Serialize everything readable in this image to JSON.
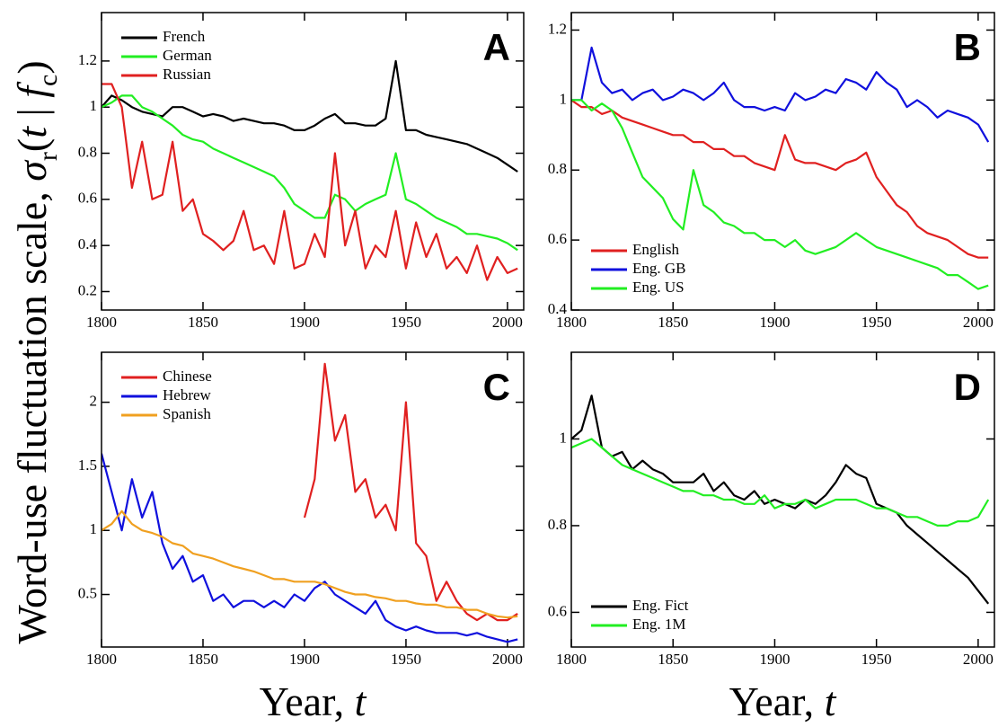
{
  "y_label": [
    "Word-use fluctuation scale, ",
    "σ",
    "r",
    "(",
    "t",
    " | ",
    "f",
    "c",
    ")"
  ],
  "x_label": [
    "Year, ",
    "t"
  ],
  "chart_data": [
    {
      "type": "line",
      "label": "A",
      "legend": "upper left",
      "x": [
        1800,
        1805,
        1810,
        1815,
        1820,
        1825,
        1830,
        1835,
        1840,
        1845,
        1850,
        1855,
        1860,
        1865,
        1870,
        1875,
        1880,
        1885,
        1890,
        1895,
        1900,
        1905,
        1910,
        1915,
        1920,
        1925,
        1930,
        1935,
        1940,
        1945,
        1950,
        1955,
        1960,
        1965,
        1970,
        1975,
        1980,
        1985,
        1990,
        1995,
        2000,
        2005
      ],
      "xlim": [
        1800,
        2008
      ],
      "xticks": [
        1800,
        1850,
        1900,
        1950,
        2000
      ],
      "ylim": [
        0.12,
        1.41
      ],
      "yticks": [
        0.2,
        0.4,
        0.6,
        0.8,
        1,
        1.2
      ],
      "series": [
        {
          "name": "French",
          "color": "#000000",
          "values": [
            1.0,
            1.05,
            1.03,
            1.0,
            0.98,
            0.97,
            0.96,
            1.0,
            1.0,
            0.98,
            0.96,
            0.97,
            0.96,
            0.94,
            0.95,
            0.94,
            0.93,
            0.93,
            0.92,
            0.9,
            0.9,
            0.92,
            0.95,
            0.97,
            0.93,
            0.93,
            0.92,
            0.92,
            0.95,
            1.2,
            0.9,
            0.9,
            0.88,
            0.87,
            0.86,
            0.85,
            0.84,
            0.82,
            0.8,
            0.78,
            0.75,
            0.72
          ]
        },
        {
          "name": "German",
          "color": "#22ee22",
          "values": [
            1.0,
            1.02,
            1.05,
            1.05,
            1.0,
            0.98,
            0.95,
            0.92,
            0.88,
            0.86,
            0.85,
            0.82,
            0.8,
            0.78,
            0.76,
            0.74,
            0.72,
            0.7,
            0.65,
            0.58,
            0.55,
            0.52,
            0.52,
            0.62,
            0.6,
            0.55,
            0.58,
            0.6,
            0.62,
            0.8,
            0.6,
            0.58,
            0.55,
            0.52,
            0.5,
            0.48,
            0.45,
            0.45,
            0.44,
            0.43,
            0.41,
            0.38
          ]
        },
        {
          "name": "Russian",
          "color": "#e02020",
          "values": [
            1.1,
            1.1,
            1.0,
            0.65,
            0.85,
            0.6,
            0.62,
            0.85,
            0.55,
            0.6,
            0.45,
            0.42,
            0.38,
            0.42,
            0.55,
            0.38,
            0.4,
            0.32,
            0.55,
            0.3,
            0.32,
            0.45,
            0.35,
            0.8,
            0.4,
            0.55,
            0.3,
            0.4,
            0.35,
            0.55,
            0.3,
            0.5,
            0.35,
            0.45,
            0.3,
            0.35,
            0.28,
            0.4,
            0.25,
            0.35,
            0.28,
            0.3
          ]
        }
      ]
    },
    {
      "type": "line",
      "label": "B",
      "legend": "lower left",
      "x": [
        1800,
        1805,
        1810,
        1815,
        1820,
        1825,
        1830,
        1835,
        1840,
        1845,
        1850,
        1855,
        1860,
        1865,
        1870,
        1875,
        1880,
        1885,
        1890,
        1895,
        1900,
        1905,
        1910,
        1915,
        1920,
        1925,
        1930,
        1935,
        1940,
        1945,
        1950,
        1955,
        1960,
        1965,
        1970,
        1975,
        1980,
        1985,
        1990,
        1995,
        2000,
        2005
      ],
      "xlim": [
        1800,
        2008
      ],
      "xticks": [
        1800,
        1850,
        1900,
        1950,
        2000
      ],
      "ylim": [
        0.4,
        1.25
      ],
      "yticks": [
        0.4,
        0.6,
        0.8,
        1,
        1.2
      ],
      "series": [
        {
          "name": "English",
          "color": "#e02020",
          "values": [
            1.0,
            0.98,
            0.98,
            0.96,
            0.97,
            0.95,
            0.94,
            0.93,
            0.92,
            0.91,
            0.9,
            0.9,
            0.88,
            0.88,
            0.86,
            0.86,
            0.84,
            0.84,
            0.82,
            0.81,
            0.8,
            0.9,
            0.83,
            0.82,
            0.82,
            0.81,
            0.8,
            0.82,
            0.83,
            0.85,
            0.78,
            0.74,
            0.7,
            0.68,
            0.64,
            0.62,
            0.61,
            0.6,
            0.58,
            0.56,
            0.55,
            0.55
          ]
        },
        {
          "name": "Eng. GB",
          "color": "#1010dd",
          "values": [
            1.0,
            1.0,
            1.15,
            1.05,
            1.02,
            1.03,
            1.0,
            1.02,
            1.03,
            1.0,
            1.01,
            1.03,
            1.02,
            1.0,
            1.02,
            1.05,
            1.0,
            0.98,
            0.98,
            0.97,
            0.98,
            0.97,
            1.02,
            1.0,
            1.01,
            1.03,
            1.02,
            1.06,
            1.05,
            1.03,
            1.08,
            1.05,
            1.03,
            0.98,
            1.0,
            0.98,
            0.95,
            0.97,
            0.96,
            0.95,
            0.93,
            0.88
          ]
        },
        {
          "name": "Eng. US",
          "color": "#22ee22",
          "values": [
            1.0,
            1.0,
            0.97,
            0.99,
            0.97,
            0.92,
            0.85,
            0.78,
            0.75,
            0.72,
            0.66,
            0.63,
            0.8,
            0.7,
            0.68,
            0.65,
            0.64,
            0.62,
            0.62,
            0.6,
            0.6,
            0.58,
            0.6,
            0.57,
            0.56,
            0.57,
            0.58,
            0.6,
            0.62,
            0.6,
            0.58,
            0.57,
            0.56,
            0.55,
            0.54,
            0.53,
            0.52,
            0.5,
            0.5,
            0.48,
            0.46,
            0.47
          ]
        }
      ]
    },
    {
      "type": "line",
      "label": "C",
      "legend": "upper left",
      "x": [
        1800,
        1805,
        1810,
        1815,
        1820,
        1825,
        1830,
        1835,
        1840,
        1845,
        1850,
        1855,
        1860,
        1865,
        1870,
        1875,
        1880,
        1885,
        1890,
        1895,
        1900,
        1905,
        1910,
        1915,
        1920,
        1925,
        1930,
        1935,
        1940,
        1945,
        1950,
        1955,
        1960,
        1965,
        1970,
        1975,
        1980,
        1985,
        1990,
        1995,
        2000,
        2005
      ],
      "xlim": [
        1800,
        2008
      ],
      "xticks": [
        1800,
        1850,
        1900,
        1950,
        2000
      ],
      "ylim": [
        0.09,
        2.39
      ],
      "yticks": [
        0.5,
        1,
        1.5,
        2
      ],
      "series": [
        {
          "name": "Chinese",
          "color": "#e02020",
          "values": [
            null,
            null,
            null,
            null,
            null,
            null,
            null,
            null,
            null,
            null,
            null,
            null,
            null,
            null,
            null,
            null,
            null,
            null,
            null,
            null,
            1.1,
            1.4,
            2.3,
            1.7,
            1.9,
            1.3,
            1.4,
            1.1,
            1.2,
            1.0,
            2.0,
            0.9,
            0.8,
            0.45,
            0.6,
            0.45,
            0.35,
            0.3,
            0.35,
            0.3,
            0.3,
            0.35
          ]
        },
        {
          "name": "Hebrew",
          "color": "#1010dd",
          "values": [
            1.6,
            1.3,
            1.0,
            1.4,
            1.1,
            1.3,
            0.9,
            0.7,
            0.8,
            0.6,
            0.65,
            0.45,
            0.5,
            0.4,
            0.45,
            0.45,
            0.4,
            0.45,
            0.4,
            0.5,
            0.45,
            0.55,
            0.6,
            0.5,
            0.45,
            0.4,
            0.35,
            0.45,
            0.3,
            0.25,
            0.22,
            0.25,
            0.22,
            0.2,
            0.2,
            0.2,
            0.18,
            0.2,
            0.17,
            0.15,
            0.13,
            0.15
          ]
        },
        {
          "name": "Spanish",
          "color": "#f0a020",
          "values": [
            1.0,
            1.05,
            1.15,
            1.05,
            1.0,
            0.98,
            0.95,
            0.9,
            0.88,
            0.82,
            0.8,
            0.78,
            0.75,
            0.72,
            0.7,
            0.68,
            0.65,
            0.62,
            0.62,
            0.6,
            0.6,
            0.6,
            0.58,
            0.55,
            0.52,
            0.5,
            0.5,
            0.48,
            0.47,
            0.45,
            0.45,
            0.43,
            0.42,
            0.42,
            0.4,
            0.4,
            0.38,
            0.38,
            0.35,
            0.33,
            0.32,
            0.33
          ]
        }
      ]
    },
    {
      "type": "line",
      "label": "D",
      "legend": "lower left",
      "x": [
        1800,
        1805,
        1810,
        1815,
        1820,
        1825,
        1830,
        1835,
        1840,
        1845,
        1850,
        1855,
        1860,
        1865,
        1870,
        1875,
        1880,
        1885,
        1890,
        1895,
        1900,
        1905,
        1910,
        1915,
        1920,
        1925,
        1930,
        1935,
        1940,
        1945,
        1950,
        1955,
        1960,
        1965,
        1970,
        1975,
        1980,
        1985,
        1990,
        1995,
        2000,
        2005
      ],
      "xlim": [
        1800,
        2008
      ],
      "xticks": [
        1800,
        1850,
        1900,
        1950,
        2000
      ],
      "ylim": [
        0.52,
        1.2
      ],
      "yticks": [
        0.6,
        0.8,
        1
      ],
      "series": [
        {
          "name": "Eng. Fict",
          "color": "#000000",
          "values": [
            1.0,
            1.02,
            1.1,
            0.98,
            0.96,
            0.97,
            0.93,
            0.95,
            0.93,
            0.92,
            0.9,
            0.9,
            0.9,
            0.92,
            0.88,
            0.9,
            0.87,
            0.86,
            0.88,
            0.85,
            0.86,
            0.85,
            0.84,
            0.86,
            0.85,
            0.87,
            0.9,
            0.94,
            0.92,
            0.91,
            0.85,
            0.84,
            0.83,
            0.8,
            0.78,
            0.76,
            0.74,
            0.72,
            0.7,
            0.68,
            0.65,
            0.62
          ]
        },
        {
          "name": "Eng. 1M",
          "color": "#22ee22",
          "values": [
            0.98,
            0.99,
            1.0,
            0.98,
            0.96,
            0.94,
            0.93,
            0.92,
            0.91,
            0.9,
            0.89,
            0.88,
            0.88,
            0.87,
            0.87,
            0.86,
            0.86,
            0.85,
            0.85,
            0.87,
            0.84,
            0.85,
            0.85,
            0.86,
            0.84,
            0.85,
            0.86,
            0.86,
            0.86,
            0.85,
            0.84,
            0.84,
            0.83,
            0.82,
            0.82,
            0.81,
            0.8,
            0.8,
            0.81,
            0.81,
            0.82,
            0.86
          ]
        }
      ]
    }
  ]
}
